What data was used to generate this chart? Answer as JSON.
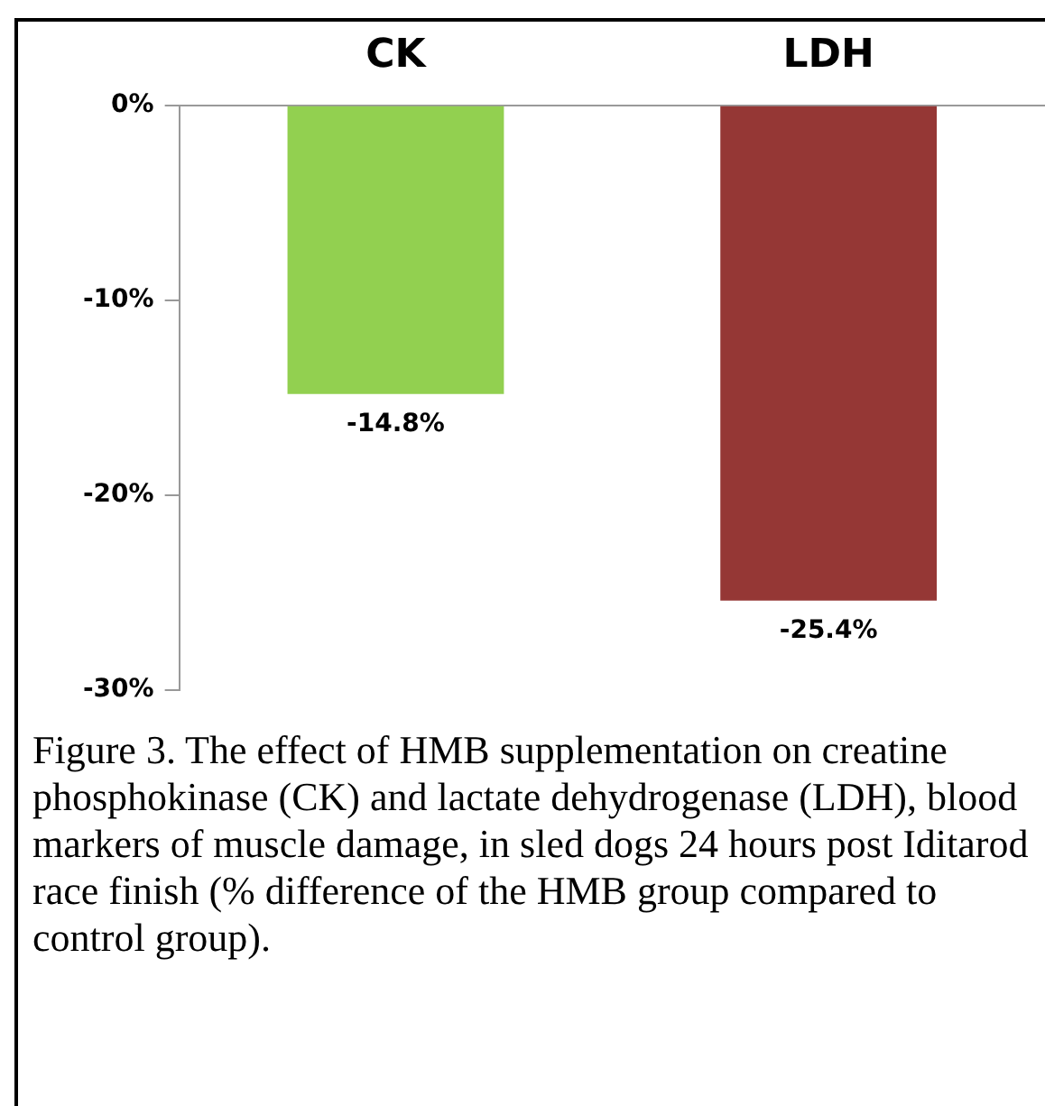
{
  "chart_data": {
    "type": "bar",
    "categories": [
      "CK",
      "LDH"
    ],
    "values": [
      -14.8,
      -25.4
    ],
    "colors": [
      "#92d050",
      "#953735"
    ],
    "value_labels": [
      "-14.8%",
      "-25.4%"
    ],
    "ylim": [
      -30,
      0
    ],
    "yticks": [
      {
        "value": 0,
        "label": "0%"
      },
      {
        "value": -10,
        "label": "-10%"
      },
      {
        "value": -20,
        "label": "-20%"
      },
      {
        "value": -30,
        "label": "-30%"
      }
    ],
    "grid": false,
    "legend": false,
    "annotations": [
      "Figure 3.  The effect of HMB supplementation on creatine phosphokinase (CK) and lactate dehydrogenase (LDH), blood markers of muscle damage, in sled dogs 24 hours post Iditarod race finish (% difference of the HMB group compared to control group)."
    ]
  }
}
